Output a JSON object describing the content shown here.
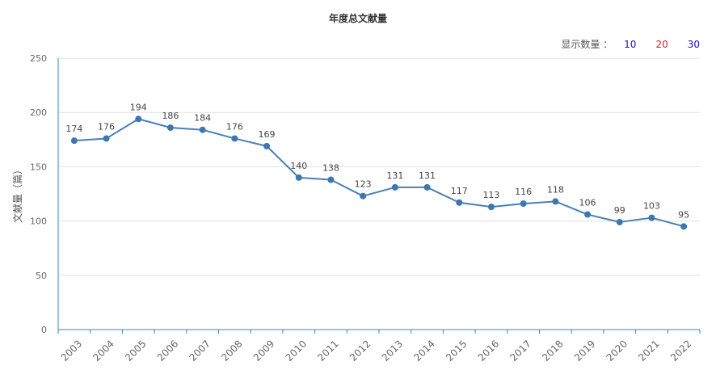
{
  "title": "年度总文献量",
  "display_control": {
    "label": "显示数量 ：",
    "options": [
      "10",
      "20",
      "30"
    ]
  },
  "colors": {
    "line": "#4a7fb5",
    "point": "#3f76b0",
    "grid": "#e0e0e0",
    "axis": "#3a86c8",
    "option_blue": "#1a0dcc",
    "option_red": "#e02020"
  },
  "chart_data": {
    "type": "line",
    "title": "年度总文献量",
    "xlabel": "",
    "ylabel": "文献量（篇）",
    "ylim": [
      0,
      250
    ],
    "yticks": [
      0,
      50,
      100,
      150,
      200,
      250
    ],
    "grid": true,
    "categories": [
      "2003",
      "2004",
      "2005",
      "2006",
      "2007",
      "2008",
      "2009",
      "2010",
      "2011",
      "2012",
      "2013",
      "2014",
      "2015",
      "2016",
      "2017",
      "2018",
      "2019",
      "2020",
      "2021",
      "2022"
    ],
    "series": [
      {
        "values": [
          174,
          176,
          194,
          186,
          184,
          176,
          169,
          140,
          138,
          123,
          131,
          131,
          117,
          113,
          116,
          118,
          106,
          99,
          103,
          95
        ]
      }
    ]
  }
}
